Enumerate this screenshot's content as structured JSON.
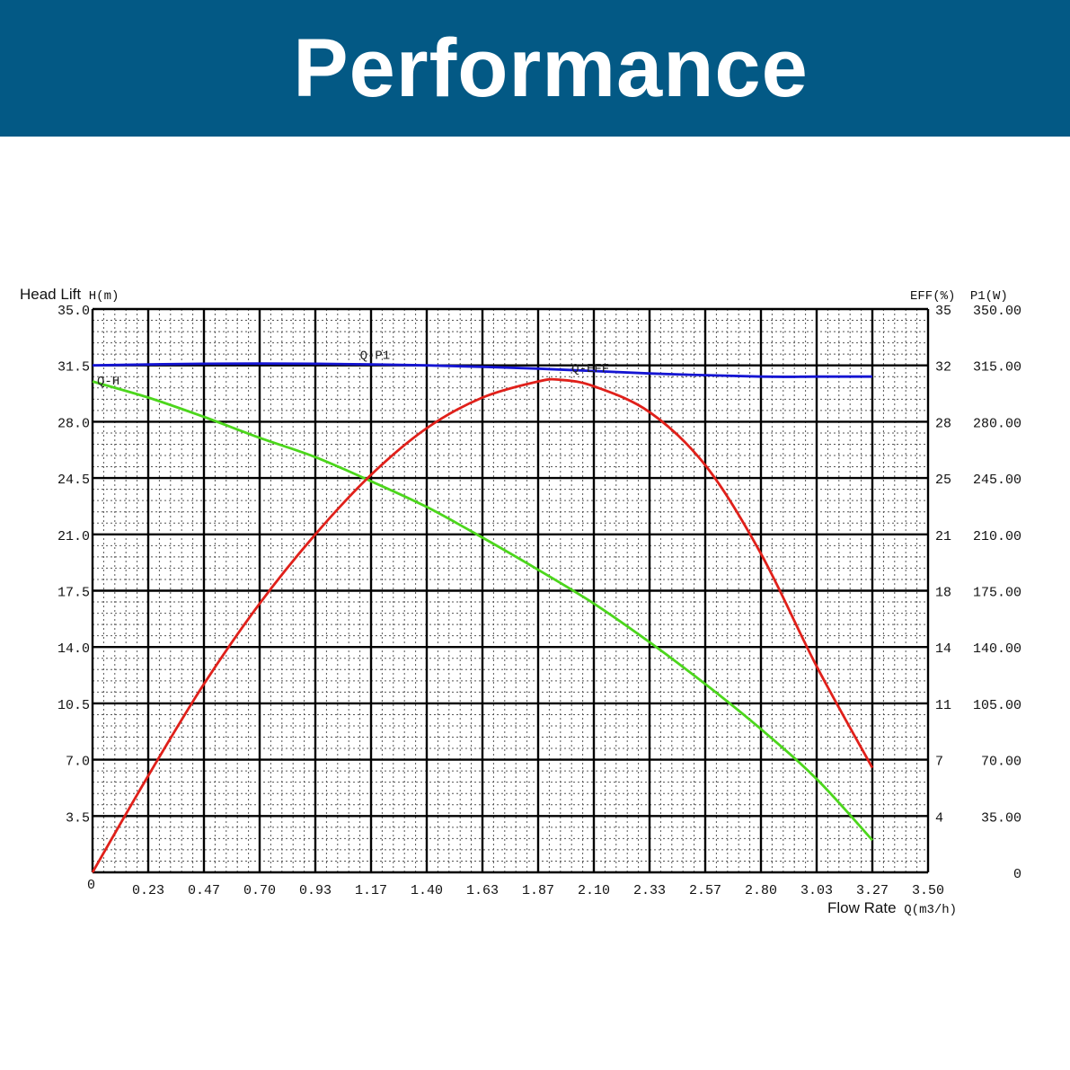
{
  "header": {
    "title": "Performance"
  },
  "chart_data": {
    "type": "line",
    "left_axis_title": {
      "prefix": "Head Lift",
      "symbol": "H(m)"
    },
    "right_axis_title": {
      "eff": "EFF(%)",
      "power": "P1(W)"
    },
    "x_axis_title": {
      "prefix": "Flow Rate",
      "symbol": "Q(m3/h)"
    },
    "xlim": [
      0,
      3.5
    ],
    "ylim": [
      0,
      35
    ],
    "x_ticks": [
      {
        "v": 0,
        "label": "0"
      },
      {
        "v": 0.25,
        "label": "0.23"
      },
      {
        "v": 0.5,
        "label": "0.47"
      },
      {
        "v": 0.75,
        "label": "0.70"
      },
      {
        "v": 1.0,
        "label": "0.93"
      },
      {
        "v": 1.25,
        "label": "1.17"
      },
      {
        "v": 1.5,
        "label": "1.40"
      },
      {
        "v": 1.75,
        "label": "1.63"
      },
      {
        "v": 2.0,
        "label": "1.87"
      },
      {
        "v": 2.25,
        "label": "2.10"
      },
      {
        "v": 2.5,
        "label": "2.33"
      },
      {
        "v": 2.75,
        "label": "2.57"
      },
      {
        "v": 3.0,
        "label": "2.80"
      },
      {
        "v": 3.25,
        "label": "3.03"
      },
      {
        "v": 3.5,
        "label": "3.27"
      },
      {
        "v": 3.75,
        "label": "3.50"
      }
    ],
    "left_ticks": [
      {
        "v": 3.5,
        "label": "3.5"
      },
      {
        "v": 7,
        "label": "7.0"
      },
      {
        "v": 10.5,
        "label": "10.5"
      },
      {
        "v": 14,
        "label": "14.0"
      },
      {
        "v": 17.5,
        "label": "17.5"
      },
      {
        "v": 21,
        "label": "21.0"
      },
      {
        "v": 24.5,
        "label": "24.5"
      },
      {
        "v": 28,
        "label": "28.0"
      },
      {
        "v": 31.5,
        "label": "31.5"
      },
      {
        "v": 35,
        "label": "35.0"
      }
    ],
    "right_eff_ticks": [
      {
        "v": 3.5,
        "label": "4"
      },
      {
        "v": 7,
        "label": "7"
      },
      {
        "v": 10.5,
        "label": "11"
      },
      {
        "v": 14,
        "label": "14"
      },
      {
        "v": 17.5,
        "label": "18"
      },
      {
        "v": 21,
        "label": "21"
      },
      {
        "v": 24.5,
        "label": "25"
      },
      {
        "v": 28,
        "label": "28"
      },
      {
        "v": 31.5,
        "label": "32"
      },
      {
        "v": 35,
        "label": "35"
      }
    ],
    "right_power_ticks": [
      {
        "v": 0,
        "label": "0"
      },
      {
        "v": 3.5,
        "label": "35.00"
      },
      {
        "v": 7,
        "label": "70.00"
      },
      {
        "v": 10.5,
        "label": "105.00"
      },
      {
        "v": 14,
        "label": "140.00"
      },
      {
        "v": 17.5,
        "label": "175.00"
      },
      {
        "v": 21,
        "label": "210.00"
      },
      {
        "v": 24.5,
        "label": "245.00"
      },
      {
        "v": 28,
        "label": "280.00"
      },
      {
        "v": 31.5,
        "label": "315.00"
      },
      {
        "v": 35,
        "label": "350.00"
      }
    ],
    "series": [
      {
        "name": "Q-P1",
        "color": "#1414d2",
        "x": [
          0,
          0.5,
          1.0,
          1.5,
          2.0,
          2.5,
          3.0,
          3.25,
          3.5
        ],
        "y": [
          31.5,
          31.6,
          31.6,
          31.5,
          31.3,
          31.0,
          30.8,
          30.8,
          30.8
        ]
      },
      {
        "name": "Q-H",
        "color": "#4cd61c",
        "x": [
          0,
          0.25,
          0.5,
          0.75,
          1.0,
          1.25,
          1.5,
          1.75,
          2.0,
          2.25,
          2.5,
          2.75,
          3.0,
          3.25,
          3.5
        ],
        "y": [
          30.5,
          29.5,
          28.3,
          27.0,
          25.8,
          24.3,
          22.7,
          20.8,
          18.8,
          16.7,
          14.3,
          11.7,
          8.9,
          5.8,
          2.0
        ]
      },
      {
        "name": "Q-EFF",
        "color": "#e0201a",
        "x": [
          0,
          0.25,
          0.5,
          0.75,
          1.0,
          1.25,
          1.5,
          1.75,
          2.0,
          2.1,
          2.25,
          2.5,
          2.75,
          3.0,
          3.25,
          3.5
        ],
        "y": [
          0,
          6.0,
          11.7,
          16.7,
          21.0,
          24.7,
          27.6,
          29.5,
          30.5,
          30.6,
          30.2,
          28.6,
          25.3,
          19.8,
          12.8,
          6.5
        ]
      }
    ],
    "series_labels": [
      {
        "series": "Q-P1",
        "text": "Q-P1",
        "at_x": 1.2,
        "at_y": 31.9
      },
      {
        "series": "Q-H",
        "text": "Q-H",
        "at_x": 0.02,
        "at_y": 30.3
      },
      {
        "series": "Q-EFF",
        "text": "Q-EFF",
        "at_x": 2.15,
        "at_y": 31.1
      }
    ],
    "grid": true
  }
}
